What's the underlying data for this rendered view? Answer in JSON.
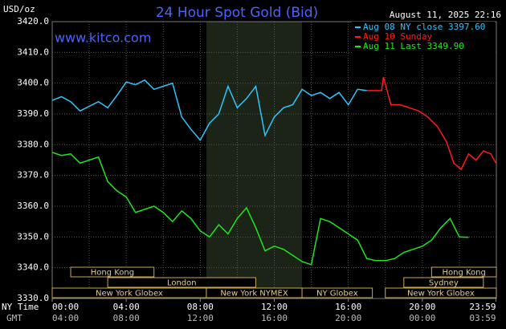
{
  "chart_data": {
    "type": "line",
    "title": "24 Hour Spot Gold (Bid)",
    "unit_label": "USD/oz",
    "timestamp": "August 11, 2025 22:16",
    "site": "www.kitco.com",
    "x_row_label": "NY Time",
    "x2_row_label": "GMT",
    "xlim": [
      0,
      24
    ],
    "ylim": [
      3330,
      3420
    ],
    "yticks": [
      {
        "value": 3330,
        "label": "3330.0"
      },
      {
        "value": 3340,
        "label": "3340.0"
      },
      {
        "value": 3350,
        "label": "3350.0"
      },
      {
        "value": 3360,
        "label": "3360.0"
      },
      {
        "value": 3370,
        "label": "3370.0"
      },
      {
        "value": 3380,
        "label": "3380.0"
      },
      {
        "value": 3390,
        "label": "3390.0"
      },
      {
        "value": 3400,
        "label": "3400.0"
      },
      {
        "value": 3410,
        "label": "3410.0"
      },
      {
        "value": 3420,
        "label": "3420.0"
      }
    ],
    "xticks": [
      {
        "value": 0,
        "label": "00:00"
      },
      {
        "value": 4,
        "label": "04:00"
      },
      {
        "value": 8,
        "label": "08:00"
      },
      {
        "value": 12,
        "label": "12:00"
      },
      {
        "value": 16,
        "label": "16:00"
      },
      {
        "value": 20,
        "label": "20:00"
      },
      {
        "value": 23.98,
        "label": "23:59"
      }
    ],
    "x2ticks": [
      {
        "value": 0,
        "label": "04:00"
      },
      {
        "value": 4,
        "label": "08:00"
      },
      {
        "value": 8,
        "label": "12:00"
      },
      {
        "value": 12,
        "label": "16:00"
      },
      {
        "value": 16,
        "label": "20:00"
      },
      {
        "value": 20,
        "label": "00:00"
      },
      {
        "value": 23.98,
        "label": "03:59"
      }
    ],
    "xgrid": [
      2,
      4,
      6,
      8,
      10,
      12,
      14,
      16,
      18,
      20,
      22
    ],
    "grid": true,
    "highlight": [
      8.33,
      13.5
    ],
    "session_rows": [
      [
        {
          "label": "Hong Kong",
          "start": 1,
          "end": 5.5
        },
        {
          "label": "Hong Kong",
          "start": 20.5,
          "end": 24
        }
      ],
      [
        {
          "label": "London",
          "start": 3,
          "end": 11
        },
        {
          "label": "Sydney",
          "start": 19,
          "end": 23.3
        }
      ],
      [
        {
          "label": "New York Globex",
          "start": 0,
          "end": 8.33
        },
        {
          "label": "New York NYMEX",
          "start": 8.33,
          "end": 13.5
        },
        {
          "label": "NY Globex",
          "start": 13.5,
          "end": 17.3
        },
        {
          "label": "New York Globex",
          "start": 18,
          "end": 24
        }
      ]
    ],
    "series": [
      {
        "name": "Aug 08 NY close 3397.60",
        "color": "#2ec4ff",
        "x": [
          0,
          0.5,
          1,
          1.5,
          2,
          2.5,
          3,
          3.5,
          4,
          4.5,
          5,
          5.5,
          6,
          6.5,
          7,
          7.5,
          8,
          8.5,
          9,
          9.5,
          10,
          10.5,
          11,
          11.5,
          12,
          12.5,
          13,
          13.5,
          14,
          14.5,
          15,
          15.5,
          16,
          16.5,
          17
        ],
        "values": [
          3394.4,
          3395.6,
          3394,
          3391,
          3392.5,
          3394,
          3392,
          3396,
          3400.4,
          3399.5,
          3401,
          3398,
          3399,
          3400,
          3389,
          3385,
          3381.5,
          3387,
          3390,
          3399,
          3392,
          3395,
          3399,
          3383,
          3389,
          3392,
          3393,
          3398,
          3396,
          3397,
          3395,
          3397,
          3393,
          3398,
          3397.6
        ]
      },
      {
        "name": "Aug 10 Sunday",
        "color": "#ff1a1a",
        "x": [
          17,
          17.8,
          17.9,
          18.3,
          18.8,
          19.3,
          19.8,
          20.3,
          20.8,
          21.3,
          21.7,
          22.1,
          22.5,
          22.9,
          23.3,
          23.7,
          23.98
        ],
        "values": [
          3397.6,
          3397.6,
          3402,
          3393,
          3393,
          3392,
          3391,
          3389,
          3386,
          3381,
          3374,
          3372,
          3377,
          3375,
          3378,
          3377,
          3374
        ]
      },
      {
        "name": "Aug 11 Last 3349.90",
        "color": "#1ee61e",
        "x": [
          0,
          0.5,
          1,
          1.5,
          2,
          2.5,
          3,
          3.5,
          4,
          4.5,
          5,
          5.5,
          6,
          6.5,
          7,
          7.5,
          8,
          8.5,
          9,
          9.5,
          10,
          10.5,
          11,
          11.5,
          12,
          12.5,
          13,
          13.5,
          14,
          14.5,
          15,
          15.5,
          16,
          16.5,
          17,
          17.5,
          18,
          18.5,
          19,
          19.5,
          20,
          20.5,
          21,
          21.5,
          22,
          22.5
        ],
        "values": [
          3377.5,
          3376.5,
          3377,
          3374,
          3375,
          3376,
          3368,
          3365,
          3363,
          3358,
          3359,
          3360,
          3358,
          3355,
          3358.5,
          3356,
          3352,
          3350,
          3354,
          3351,
          3356,
          3359.5,
          3353,
          3345.5,
          3347,
          3346,
          3344,
          3342,
          3341,
          3356,
          3355,
          3353,
          3351,
          3349,
          3343,
          3342.3,
          3342.3,
          3343,
          3345,
          3346,
          3347,
          3349,
          3353,
          3356,
          3350,
          3349.9
        ]
      }
    ]
  }
}
